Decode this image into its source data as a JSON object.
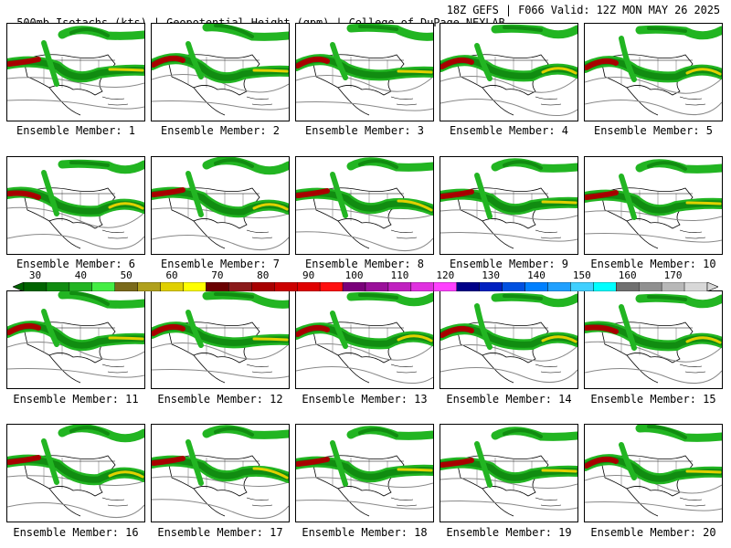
{
  "header": {
    "title_left": "500mb Isotachs (kts) | Geopotential Height (gpm) | College of DuPage NEXLAB",
    "title_right": "18Z GEFS | F066 Valid: 12Z MON MAY 26 2025"
  },
  "members": [
    {
      "label": "Ensemble Member: 1"
    },
    {
      "label": "Ensemble Member: 2"
    },
    {
      "label": "Ensemble Member: 3"
    },
    {
      "label": "Ensemble Member: 4"
    },
    {
      "label": "Ensemble Member: 5"
    },
    {
      "label": "Ensemble Member: 6"
    },
    {
      "label": "Ensemble Member: 7"
    },
    {
      "label": "Ensemble Member: 8"
    },
    {
      "label": "Ensemble Member: 9"
    },
    {
      "label": "Ensemble Member: 10"
    },
    {
      "label": "Ensemble Member: 11"
    },
    {
      "label": "Ensemble Member: 12"
    },
    {
      "label": "Ensemble Member: 13"
    },
    {
      "label": "Ensemble Member: 14"
    },
    {
      "label": "Ensemble Member: 15"
    },
    {
      "label": "Ensemble Member: 16"
    },
    {
      "label": "Ensemble Member: 17"
    },
    {
      "label": "Ensemble Member: 18"
    },
    {
      "label": "Ensemble Member: 19"
    },
    {
      "label": "Ensemble Member: 20"
    }
  ],
  "colorbar": {
    "ticks": [
      "30",
      "40",
      "50",
      "60",
      "70",
      "80",
      "90",
      "100",
      "110",
      "120",
      "130",
      "140",
      "150",
      "160",
      "170"
    ],
    "colors": [
      "#006400",
      "#118c11",
      "#22b522",
      "#44ee44",
      "#7a6a1a",
      "#b0a01c",
      "#e0d000",
      "#ffff00",
      "#6a0000",
      "#8b1a1a",
      "#a80000",
      "#cc0000",
      "#e00000",
      "#ff1010",
      "#7a007a",
      "#9a109a",
      "#c020c0",
      "#e030e0",
      "#ff40ff",
      "#000088",
      "#0020c0",
      "#0050e0",
      "#0080ff",
      "#20a0ff",
      "#40d0ff",
      "#00ffff",
      "#707070",
      "#909090",
      "#b8b8b8",
      "#d8d8d8"
    ]
  }
}
